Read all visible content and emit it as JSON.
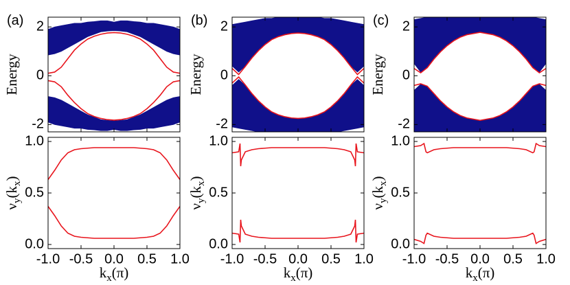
{
  "chart_data": [
    {
      "type": "band",
      "panel_label": "(a)",
      "ylabel": "Energy",
      "x": [
        -1,
        -0.9,
        -0.8,
        -0.7,
        -0.6,
        -0.5,
        -0.4,
        -0.3,
        -0.2,
        -0.1,
        0,
        0.1,
        0.2,
        0.3,
        0.4,
        0.5,
        0.6,
        0.7,
        0.8,
        0.9,
        1
      ],
      "xlim": [
        -1,
        1
      ],
      "xticks": [
        -1,
        -0.5,
        0,
        0.5,
        1
      ],
      "ylim": [
        -2.3,
        2.4
      ],
      "yticks": [
        -2,
        0,
        2
      ],
      "series": [
        {
          "kind": "fill",
          "color": "#10108a",
          "lower": [
            0.85,
            0.9,
            1.0,
            1.15,
            1.3,
            1.45,
            1.6,
            1.7,
            1.8,
            1.83,
            1.85,
            1.83,
            1.8,
            1.7,
            1.6,
            1.45,
            1.3,
            1.15,
            1.0,
            0.9,
            0.85
          ],
          "upper": [
            1.9,
            2.0,
            2.05,
            2.1,
            2.15,
            2.15,
            2.2,
            2.22,
            2.25,
            2.25,
            2.2,
            2.25,
            2.25,
            2.22,
            2.2,
            2.15,
            2.15,
            2.1,
            2.05,
            2.0,
            1.9
          ]
        },
        {
          "kind": "fill",
          "color": "#10108a",
          "lower": [
            -1.9,
            -2.0,
            -2.05,
            -2.1,
            -2.15,
            -2.15,
            -2.2,
            -2.22,
            -2.25,
            -2.25,
            -2.2,
            -2.25,
            -2.25,
            -2.22,
            -2.2,
            -2.15,
            -2.15,
            -2.1,
            -2.05,
            -2.0,
            -1.9
          ],
          "upper": [
            -0.85,
            -0.9,
            -1.0,
            -1.15,
            -1.3,
            -1.45,
            -1.6,
            -1.7,
            -1.8,
            -1.83,
            -1.85,
            -1.83,
            -1.8,
            -1.7,
            -1.6,
            -1.45,
            -1.3,
            -1.15,
            -1.0,
            -0.9,
            -0.85
          ]
        },
        {
          "color": "#e8141c",
          "values": [
            0.1,
            0.15,
            0.35,
            0.7,
            1.05,
            1.3,
            1.5,
            1.62,
            1.7,
            1.75,
            1.77,
            1.75,
            1.7,
            1.62,
            1.5,
            1.3,
            1.05,
            0.7,
            0.35,
            0.15,
            0.1
          ]
        },
        {
          "color": "#e8141c",
          "values": [
            -0.2,
            -0.25,
            -0.45,
            -0.8,
            -1.1,
            -1.35,
            -1.55,
            -1.67,
            -1.75,
            -1.8,
            -1.82,
            -1.8,
            -1.75,
            -1.67,
            -1.55,
            -1.35,
            -1.1,
            -0.8,
            -0.45,
            -0.25,
            -0.2
          ]
        }
      ]
    },
    {
      "type": "line",
      "ylabel_parts": [
        "ν",
        "y",
        "(k",
        "x",
        ")"
      ],
      "xlabel_parts": [
        "k",
        "x",
        "(π)"
      ],
      "x": [
        -1,
        -0.9,
        -0.8,
        -0.7,
        -0.6,
        -0.5,
        -0.4,
        -0.3,
        -0.2,
        -0.1,
        0,
        0.1,
        0.2,
        0.3,
        0.4,
        0.5,
        0.6,
        0.7,
        0.8,
        0.9,
        1
      ],
      "xlim": [
        -1,
        1
      ],
      "xticks": [
        {
          "value": -1,
          "label": "-1.0"
        },
        {
          "value": -0.5,
          "label": "-0.5"
        },
        {
          "value": 0,
          "label": "0.0"
        },
        {
          "value": 0.5,
          "label": "0.5"
        },
        {
          "value": 1,
          "label": "1.0"
        }
      ],
      "ylim": [
        -0.04,
        1.04
      ],
      "yticks": [
        {
          "value": 0,
          "label": "0.0"
        },
        {
          "value": 0.5,
          "label": "0.5"
        },
        {
          "value": 1,
          "label": "1.0"
        }
      ],
      "series": [
        {
          "color": "#e8141c",
          "values": [
            0.63,
            0.72,
            0.82,
            0.89,
            0.92,
            0.93,
            0.935,
            0.94,
            0.94,
            0.94,
            0.94,
            0.94,
            0.94,
            0.94,
            0.935,
            0.93,
            0.92,
            0.89,
            0.82,
            0.72,
            0.63
          ]
        },
        {
          "color": "#e8141c",
          "values": [
            0.37,
            0.28,
            0.18,
            0.11,
            0.08,
            0.07,
            0.065,
            0.06,
            0.06,
            0.06,
            0.06,
            0.06,
            0.06,
            0.06,
            0.065,
            0.07,
            0.08,
            0.11,
            0.18,
            0.28,
            0.37
          ]
        }
      ]
    },
    {
      "type": "band",
      "panel_label": "(b)",
      "ylabel": "Energy",
      "x": [
        -1,
        -0.9,
        -0.8,
        -0.7,
        -0.6,
        -0.5,
        -0.4,
        -0.3,
        -0.2,
        -0.1,
        0,
        0.1,
        0.2,
        0.3,
        0.4,
        0.5,
        0.6,
        0.7,
        0.8,
        0.9,
        1
      ],
      "xlim": [
        -1,
        1
      ],
      "xticks": [
        -1,
        -0.5,
        0,
        0.5,
        1
      ],
      "ylim": [
        -2.3,
        2.4
      ],
      "yticks": [
        -2,
        0,
        2
      ],
      "series": [
        {
          "kind": "fill",
          "color": "#10108a",
          "lower": [
            0.4,
            0.15,
            0.4,
            0.75,
            1.05,
            1.3,
            1.5,
            1.62,
            1.7,
            1.75,
            1.77,
            1.75,
            1.7,
            1.62,
            1.5,
            1.3,
            1.05,
            0.75,
            0.4,
            0.15,
            0.4
          ],
          "upper": [
            2.1,
            2.15,
            2.2,
            2.25,
            2.3,
            2.35,
            2.35,
            2.4,
            2.4,
            2.4,
            2.4,
            2.4,
            2.4,
            2.4,
            2.35,
            2.35,
            2.3,
            2.25,
            2.2,
            2.15,
            2.1
          ]
        },
        {
          "kind": "fill",
          "color": "#10108a",
          "lower": [
            -2.1,
            -2.15,
            -2.2,
            -2.25,
            -2.3,
            -2.3,
            -2.3,
            -2.3,
            -2.3,
            -2.3,
            -2.3,
            -2.3,
            -2.3,
            -2.3,
            -2.3,
            -2.3,
            -2.3,
            -2.25,
            -2.2,
            -2.15,
            -2.1
          ],
          "upper": [
            -0.4,
            -0.15,
            -0.4,
            -0.75,
            -1.05,
            -1.3,
            -1.5,
            -1.62,
            -1.7,
            -1.75,
            -1.77,
            -1.75,
            -1.7,
            -1.62,
            -1.5,
            -1.3,
            -1.05,
            -0.75,
            -0.4,
            -0.15,
            -0.4
          ]
        },
        {
          "color": "#e8141c",
          "values": [
            0.3,
            0.05,
            0.38,
            0.73,
            1.03,
            1.28,
            1.48,
            1.6,
            1.68,
            1.73,
            1.75,
            1.73,
            1.68,
            1.6,
            1.48,
            1.28,
            1.03,
            0.73,
            0.38,
            0.05,
            0.3
          ]
        },
        {
          "color": "#e8141c",
          "values": [
            -0.3,
            -0.05,
            -0.38,
            -0.73,
            -1.03,
            -1.28,
            -1.48,
            -1.6,
            -1.68,
            -1.73,
            -1.75,
            -1.73,
            -1.68,
            -1.6,
            -1.48,
            -1.28,
            -1.03,
            -0.73,
            -0.38,
            -0.05,
            -0.3
          ]
        }
      ]
    },
    {
      "type": "line",
      "ylabel_parts": [
        "ν",
        "y",
        "(k",
        "x",
        ")"
      ],
      "xlabel_parts": [
        "k",
        "x",
        "(π)"
      ],
      "x": [
        -1,
        -0.9,
        -0.88,
        -0.87,
        -0.86,
        -0.8,
        -0.7,
        -0.6,
        -0.5,
        -0.4,
        -0.3,
        -0.2,
        -0.1,
        0,
        0.1,
        0.2,
        0.3,
        0.4,
        0.5,
        0.6,
        0.7,
        0.8,
        0.86,
        0.87,
        0.88,
        0.9,
        1
      ],
      "xlim": [
        -1,
        1
      ],
      "xticks": [
        {
          "value": -1,
          "label": "-1.0"
        },
        {
          "value": -0.5,
          "label": "-0.5"
        },
        {
          "value": 0,
          "label": "0.0"
        },
        {
          "value": 0.5,
          "label": "0.5"
        },
        {
          "value": 1,
          "label": "1.0"
        }
      ],
      "ylim": [
        -0.04,
        1.04
      ],
      "yticks": [
        {
          "value": 0,
          "label": "0.0"
        },
        {
          "value": 0.5,
          "label": "0.5"
        },
        {
          "value": 1,
          "label": "1.0"
        }
      ],
      "series": [
        {
          "color": "#e8141c",
          "values": [
            0.89,
            0.9,
            0.98,
            0.76,
            0.82,
            0.9,
            0.92,
            0.93,
            0.935,
            0.94,
            0.94,
            0.94,
            0.94,
            0.94,
            0.94,
            0.94,
            0.94,
            0.94,
            0.935,
            0.93,
            0.92,
            0.9,
            0.82,
            0.76,
            0.98,
            0.9,
            0.89
          ]
        },
        {
          "color": "#e8141c",
          "values": [
            0.11,
            0.1,
            0.02,
            0.24,
            0.18,
            0.1,
            0.08,
            0.07,
            0.065,
            0.06,
            0.06,
            0.06,
            0.06,
            0.06,
            0.06,
            0.06,
            0.06,
            0.06,
            0.065,
            0.07,
            0.08,
            0.1,
            0.18,
            0.24,
            0.02,
            0.1,
            0.11
          ]
        }
      ]
    },
    {
      "type": "band",
      "panel_label": "(c)",
      "ylabel": "Energy",
      "x": [
        -1,
        -0.9,
        -0.8,
        -0.7,
        -0.6,
        -0.5,
        -0.4,
        -0.3,
        -0.2,
        -0.1,
        0,
        0.1,
        0.2,
        0.3,
        0.4,
        0.5,
        0.6,
        0.7,
        0.8,
        0.9,
        1
      ],
      "xlim": [
        -1,
        1
      ],
      "xticks": [
        -1,
        -0.5,
        0,
        0.5,
        1
      ],
      "ylim": [
        -2.3,
        2.4
      ],
      "yticks": [
        -2,
        0,
        2
      ],
      "series": [
        {
          "kind": "fill",
          "color": "#10108a",
          "lower": [
            0.5,
            0.15,
            0.35,
            0.7,
            1.0,
            1.25,
            1.45,
            1.6,
            1.7,
            1.75,
            1.8,
            1.75,
            1.7,
            1.6,
            1.45,
            1.25,
            1.0,
            0.7,
            0.35,
            0.15,
            0.5
          ],
          "upper": [
            2.3,
            2.35,
            2.4,
            2.4,
            2.4,
            2.4,
            2.4,
            2.4,
            2.4,
            2.4,
            2.4,
            2.4,
            2.4,
            2.4,
            2.4,
            2.4,
            2.4,
            2.4,
            2.4,
            2.35,
            2.3
          ]
        },
        {
          "kind": "fill",
          "color": "#10108a",
          "lower": [
            -2.3,
            -2.3,
            -2.3,
            -2.3,
            -2.3,
            -2.3,
            -2.3,
            -2.3,
            -2.3,
            -2.3,
            -2.3,
            -2.3,
            -2.3,
            -2.3,
            -2.3,
            -2.3,
            -2.3,
            -2.3,
            -2.3,
            -2.3,
            -2.3
          ],
          "upper": [
            -0.6,
            -0.35,
            -0.45,
            -0.75,
            -1.05,
            -1.3,
            -1.5,
            -1.65,
            -1.75,
            -1.8,
            -1.85,
            -1.8,
            -1.75,
            -1.65,
            -1.5,
            -1.3,
            -1.05,
            -0.75,
            -0.45,
            -0.35,
            -0.6
          ]
        },
        {
          "color": "#e8141c",
          "values": [
            0.3,
            0.12,
            0.33,
            0.68,
            0.98,
            1.23,
            1.43,
            1.58,
            1.68,
            1.73,
            1.78,
            1.73,
            1.68,
            1.58,
            1.43,
            1.23,
            0.98,
            0.68,
            0.33,
            0.12,
            0.3
          ]
        },
        {
          "color": "#e8141c",
          "values": [
            -0.4,
            -0.33,
            -0.43,
            -0.73,
            -1.03,
            -1.28,
            -1.48,
            -1.63,
            -1.73,
            -1.78,
            -1.83,
            -1.78,
            -1.73,
            -1.63,
            -1.48,
            -1.28,
            -1.03,
            -0.73,
            -0.43,
            -0.33,
            -0.4
          ]
        }
      ]
    },
    {
      "type": "line",
      "ylabel_parts": [
        "ν",
        "y",
        "(k",
        "x",
        ")"
      ],
      "xlabel_parts": [
        "k",
        "x",
        "(π)"
      ],
      "x": [
        -1,
        -0.9,
        -0.85,
        -0.82,
        -0.8,
        -0.7,
        -0.6,
        -0.5,
        -0.4,
        -0.3,
        -0.2,
        -0.1,
        0,
        0.1,
        0.2,
        0.3,
        0.4,
        0.5,
        0.6,
        0.7,
        0.8,
        0.82,
        0.85,
        0.9,
        1
      ],
      "xlim": [
        -1,
        1
      ],
      "xticks": [
        {
          "value": -1,
          "label": "-1.0"
        },
        {
          "value": -0.5,
          "label": "-0.5"
        },
        {
          "value": 0,
          "label": "0.0"
        },
        {
          "value": 0.5,
          "label": "0.5"
        },
        {
          "value": 1,
          "label": "1.0"
        }
      ],
      "ylim": [
        -0.04,
        1.04
      ],
      "yticks": [
        {
          "value": 0,
          "label": "0.0"
        },
        {
          "value": 0.5,
          "label": "0.5"
        },
        {
          "value": 1,
          "label": "1.0"
        }
      ],
      "series": [
        {
          "color": "#e8141c",
          "values": [
            0.95,
            0.96,
            0.98,
            0.9,
            0.89,
            0.92,
            0.93,
            0.935,
            0.94,
            0.94,
            0.94,
            0.94,
            0.94,
            0.94,
            0.94,
            0.94,
            0.94,
            0.935,
            0.93,
            0.92,
            0.89,
            0.9,
            0.98,
            0.96,
            0.95
          ]
        },
        {
          "color": "#e8141c",
          "values": [
            0.05,
            0.03,
            0.01,
            0.09,
            0.11,
            0.08,
            0.07,
            0.065,
            0.06,
            0.06,
            0.06,
            0.06,
            0.06,
            0.06,
            0.06,
            0.06,
            0.06,
            0.065,
            0.07,
            0.08,
            0.11,
            0.09,
            0.01,
            0.03,
            0.05
          ]
        }
      ]
    }
  ]
}
